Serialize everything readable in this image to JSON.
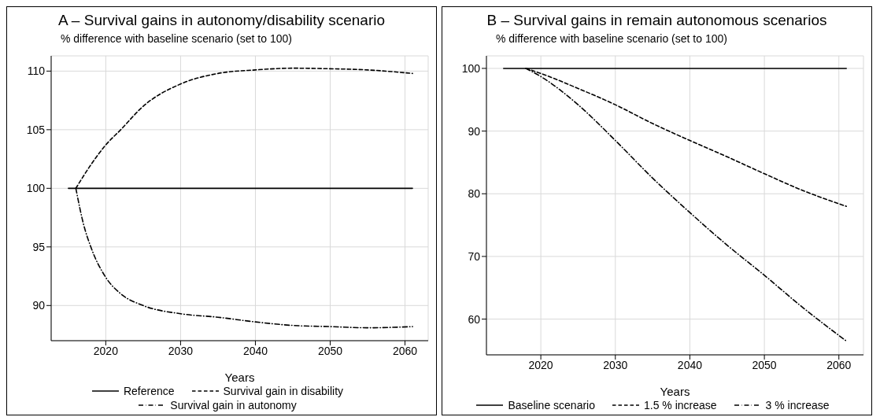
{
  "chart_data": [
    {
      "type": "line",
      "title": "A – Survival gains in autonomy/disability scenario",
      "ylabel": "% difference with baseline scenario (set to 100)",
      "xlabel": "Years",
      "xlim": [
        2012.7,
        2063.1
      ],
      "xticks": [
        2020,
        2030,
        2040,
        2050,
        2060
      ],
      "ylim": [
        87,
        111.3
      ],
      "yticks": [
        90,
        95,
        100,
        105,
        110
      ],
      "grid": true,
      "legend": "bottom",
      "series": [
        {
          "name": "Reference",
          "color": "#000000",
          "line_style": "solid",
          "x": [
            2015,
            2061
          ],
          "values": [
            100,
            100
          ]
        },
        {
          "name": "Survival gain in disability",
          "color": "#000000",
          "line_style": "dashed",
          "x": [
            2016,
            2018,
            2020,
            2022,
            2025,
            2030,
            2035,
            2040,
            2045,
            2050,
            2055,
            2061
          ],
          "values": [
            100,
            102,
            103.7,
            105,
            107,
            108.9,
            109.8,
            110.1,
            110.25,
            110.2,
            110.1,
            109.8
          ]
        },
        {
          "name": "Survival gain in autonomy",
          "color": "#000000",
          "line_style": "dashdot",
          "x": [
            2016,
            2017,
            2018,
            2020,
            2022,
            2025,
            2030,
            2035,
            2040,
            2045,
            2050,
            2055,
            2061
          ],
          "values": [
            100,
            97,
            95,
            92.4,
            91,
            90,
            89.3,
            89,
            88.6,
            88.3,
            88.2,
            88.1,
            88.2
          ]
        }
      ]
    },
    {
      "type": "line",
      "title": "B – Survival gains in remain autonomous scenarios",
      "ylabel": "% difference with baseline scenario (set to 100)",
      "xlabel": "Years",
      "xlim": [
        2012.7,
        2063.3
      ],
      "xticks": [
        2020,
        2030,
        2040,
        2050,
        2060
      ],
      "ylim": [
        54.3,
        102
      ],
      "yticks": [
        60,
        70,
        80,
        90,
        100
      ],
      "grid": true,
      "legend": "bottom",
      "series": [
        {
          "name": "Baseline scenario",
          "color": "#000000",
          "line_style": "solid",
          "x": [
            2015,
            2061
          ],
          "values": [
            100,
            100
          ]
        },
        {
          "name": "1.5 % increase",
          "color": "#000000",
          "line_style": "dashed",
          "x": [
            2018,
            2020,
            2025,
            2030,
            2035,
            2040,
            2045,
            2050,
            2055,
            2061
          ],
          "values": [
            100,
            99.2,
            96.8,
            94.2,
            91.2,
            88.5,
            85.9,
            83.2,
            80.6,
            78
          ]
        },
        {
          "name": "3 % increase",
          "color": "#000000",
          "line_style": "dashdot",
          "x": [
            2018,
            2020,
            2025,
            2030,
            2035,
            2040,
            2045,
            2050,
            2055,
            2061
          ],
          "values": [
            100,
            98.7,
            94.2,
            88.5,
            82.5,
            77,
            71.8,
            67,
            62,
            56.5
          ]
        }
      ]
    }
  ]
}
